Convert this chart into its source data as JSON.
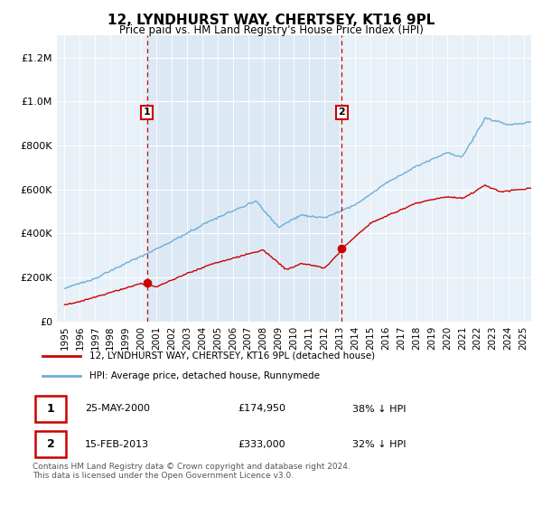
{
  "title": "12, LYNDHURST WAY, CHERTSEY, KT16 9PL",
  "subtitle": "Price paid vs. HM Land Registry's House Price Index (HPI)",
  "legend_line1": "12, LYNDHURST WAY, CHERTSEY, KT16 9PL (detached house)",
  "legend_line2": "HPI: Average price, detached house, Runnymede",
  "transaction1_year": 2000.38,
  "transaction1_value": 174950,
  "transaction2_year": 2013.12,
  "transaction2_value": 333000,
  "hpi_color": "#6baed6",
  "price_color": "#cc0000",
  "vline_color": "#cc0000",
  "shade_color": "#dce9f5",
  "plot_bg_color": "#e8f0f8",
  "footer": "Contains HM Land Registry data © Crown copyright and database right 2024.\nThis data is licensed under the Open Government Licence v3.0.",
  "ylim": [
    0,
    1300000
  ],
  "yticks": [
    0,
    200000,
    400000,
    600000,
    800000,
    1000000,
    1200000
  ],
  "xlim_start": 1994.5,
  "xlim_end": 2025.5
}
